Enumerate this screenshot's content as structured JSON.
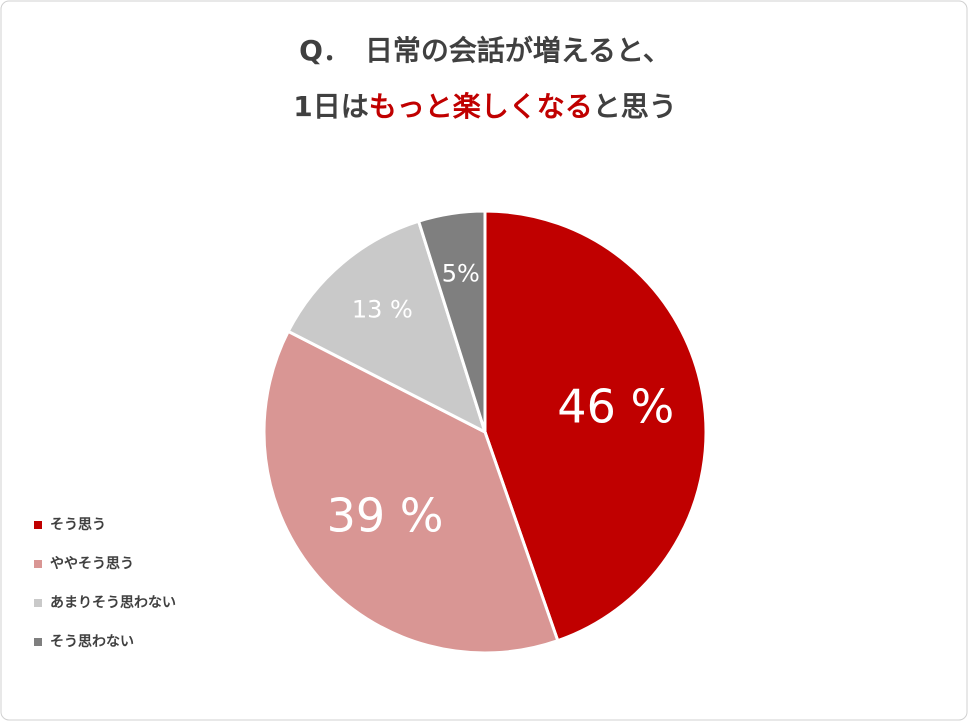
{
  "chart_data": {
    "type": "pie",
    "title": [
      [
        {
          "text": "Q．　日常の会話が増えると、"
        }
      ],
      [
        {
          "text": "1日は"
        },
        {
          "text": "もっと楽しくなる",
          "color": "#c00000"
        },
        {
          "text": "と思う"
        }
      ]
    ],
    "categories": [
      "そう思う",
      "ややそう思う",
      "あまりそう思わない",
      "そう思わない"
    ],
    "values": [
      46,
      39,
      13,
      5
    ],
    "value_labels": [
      "46 %",
      "39 %",
      "13 %",
      "5%"
    ],
    "colors": [
      "#c00000",
      "#d99694",
      "#c9c9c9",
      "#7f7f7f"
    ],
    "legend": "left-bottom"
  }
}
